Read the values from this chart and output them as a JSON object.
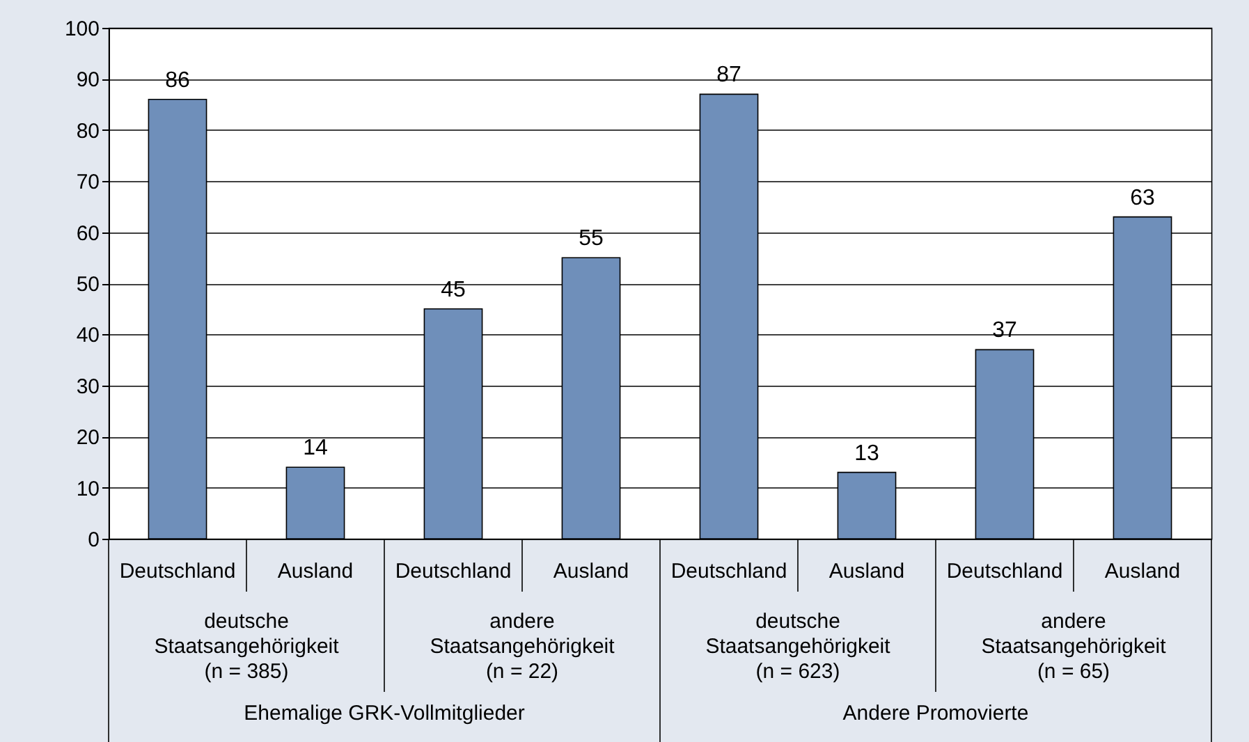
{
  "chart_data": {
    "type": "bar",
    "categories": [
      "Deutschland",
      "Ausland",
      "Deutschland",
      "Ausland",
      "Deutschland",
      "Ausland",
      "Deutschland",
      "Ausland"
    ],
    "values": [
      86,
      14,
      45,
      55,
      87,
      13,
      37,
      63
    ],
    "color": "#6f8fba",
    "data_labels": true,
    "ylim": [
      0,
      100
    ],
    "yticks": [
      0,
      10,
      20,
      30,
      40,
      50,
      60,
      70,
      80,
      90,
      100
    ],
    "grid": "y",
    "annotations": [
      "deutsche\nStaatsangehörigkeit\n(n = 385)",
      "andere\nStaatsangehörigkeit\n(n = 22)",
      "deutsche\nStaatsangehörigkeit\n(n = 623)",
      "andere\nStaatsangehörigkeit\n(n = 65)",
      "Ehemalige GRK-Vollmitglieder",
      "Andere Promovierte"
    ]
  }
}
